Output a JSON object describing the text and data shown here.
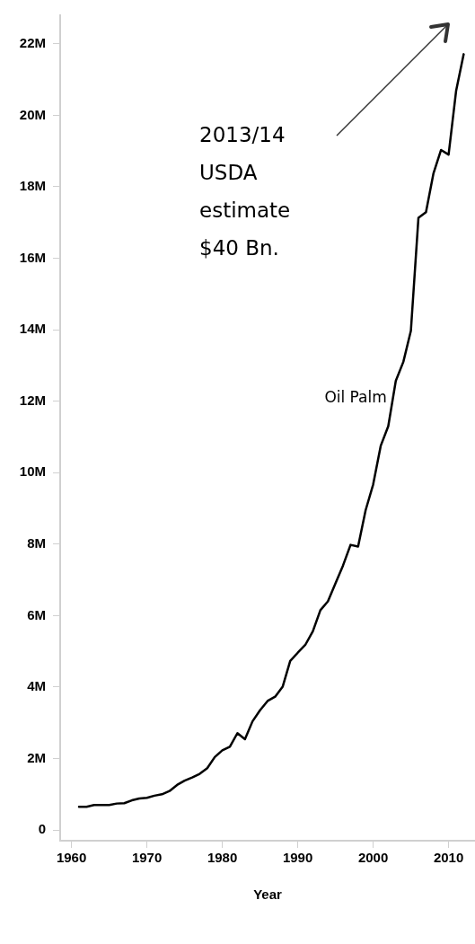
{
  "chart_data": {
    "type": "line",
    "xlabel": "Year",
    "annotations": [
      "2013/14\nUSDA\nestimate\n$40 Bn."
    ],
    "xlim": [
      1958.5,
      2013.5
    ],
    "xticks": [
      1960,
      1970,
      1980,
      1990,
      2000,
      2010
    ],
    "ylim": [
      -0.3,
      22.8
    ],
    "yticks": [
      {
        "value": 0,
        "label": "0"
      },
      {
        "value": 2,
        "label": "2M"
      },
      {
        "value": 4,
        "label": "4M"
      },
      {
        "value": 6,
        "label": "6M"
      },
      {
        "value": 8,
        "label": "8M"
      },
      {
        "value": 10,
        "label": "10M"
      },
      {
        "value": 12,
        "label": "12M"
      },
      {
        "value": 14,
        "label": "14M"
      },
      {
        "value": 16,
        "label": "16M"
      },
      {
        "value": 18,
        "label": "18M"
      },
      {
        "value": 20,
        "label": "20M"
      },
      {
        "value": 22,
        "label": "22M"
      }
    ],
    "grid": false,
    "legend": false,
    "marker": "none",
    "line_style": "solid",
    "series": [
      {
        "name": "Oil Palm",
        "color": "#000000",
        "x": [
          1961,
          1962,
          1963,
          1964,
          1965,
          1966,
          1967,
          1968,
          1969,
          1970,
          1971,
          1972,
          1973,
          1974,
          1975,
          1976,
          1977,
          1978,
          1979,
          1980,
          1981,
          1982,
          1983,
          1984,
          1985,
          1986,
          1987,
          1988,
          1989,
          1990,
          1991,
          1992,
          1993,
          1994,
          1995,
          1996,
          1997,
          1998,
          1999,
          2000,
          2001,
          2002,
          2003,
          2004,
          2005,
          2006,
          2007,
          2008,
          2009,
          2010,
          2011,
          2012
        ],
        "values": [
          0.65,
          0.65,
          0.7,
          0.7,
          0.7,
          0.74,
          0.75,
          0.83,
          0.88,
          0.9,
          0.96,
          1.0,
          1.09,
          1.26,
          1.38,
          1.47,
          1.57,
          1.73,
          2.04,
          2.23,
          2.33,
          2.71,
          2.54,
          3.04,
          3.35,
          3.61,
          3.73,
          4.01,
          4.73,
          4.96,
          5.18,
          5.56,
          6.15,
          6.4,
          6.9,
          7.4,
          7.98,
          7.93,
          8.95,
          9.67,
          10.75,
          11.3,
          12.57,
          13.1,
          13.97,
          17.13,
          17.29,
          18.38,
          19.03,
          18.9,
          20.69,
          21.71
        ]
      }
    ]
  }
}
